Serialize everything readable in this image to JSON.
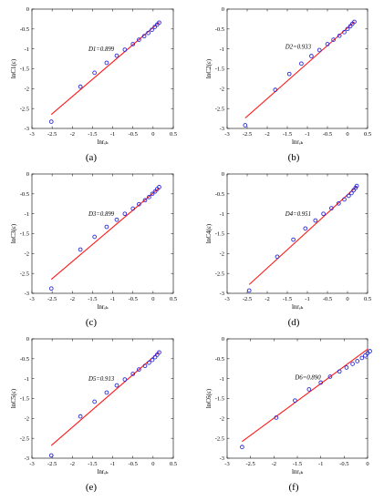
{
  "chart_data": [
    {
      "type": "scatter",
      "caption": "(a)",
      "annotation": "D1=0.899",
      "ylabel": "lnC1(ε)",
      "xlabel": "lnrₑₖ",
      "xlim": [
        -3,
        0.5
      ],
      "ylim": [
        -3,
        0
      ],
      "xticks": [
        "-3",
        "-2.5",
        "-2",
        "-1.5",
        "-1",
        "-0.5",
        "0",
        "0.5"
      ],
      "yticks": [
        "0",
        "-0.5",
        "-1",
        "-1.5",
        "-2",
        "-2.5",
        "-3"
      ],
      "points": [
        [
          -2.52,
          -2.83
        ],
        [
          -1.8,
          -1.95
        ],
        [
          -1.45,
          -1.6
        ],
        [
          -1.15,
          -1.35
        ],
        [
          -0.9,
          -1.17
        ],
        [
          -0.7,
          -1.02
        ],
        [
          -0.5,
          -0.88
        ],
        [
          -0.35,
          -0.77
        ],
        [
          -0.22,
          -0.68
        ],
        [
          -0.12,
          -0.6
        ],
        [
          -0.03,
          -0.52
        ],
        [
          0.04,
          -0.45
        ],
        [
          0.1,
          -0.39
        ],
        [
          0.15,
          -0.34
        ]
      ],
      "fit": [
        [
          -2.52,
          -2.65
        ],
        [
          0.15,
          -0.33
        ]
      ]
    },
    {
      "type": "scatter",
      "caption": "(b)",
      "annotation": "D2=0.933",
      "ylabel": "lnC2(ε)",
      "xlabel": "lnrₑₖ",
      "xlim": [
        -3,
        0.5
      ],
      "ylim": [
        -3,
        0
      ],
      "xticks": [
        "-3",
        "-2.5",
        "-2",
        "-1.5",
        "-1",
        "-0.5",
        "0",
        "0.5"
      ],
      "yticks": [
        "0",
        "-0.5",
        "-1",
        "-1.5",
        "-2",
        "-2.5",
        "-3"
      ],
      "points": [
        [
          -2.55,
          -2.92
        ],
        [
          -1.8,
          -2.03
        ],
        [
          -1.45,
          -1.63
        ],
        [
          -1.15,
          -1.37
        ],
        [
          -0.9,
          -1.18
        ],
        [
          -0.7,
          -1.03
        ],
        [
          -0.5,
          -0.88
        ],
        [
          -0.35,
          -0.77
        ],
        [
          -0.2,
          -0.67
        ],
        [
          -0.08,
          -0.58
        ],
        [
          0,
          -0.5
        ],
        [
          0.07,
          -0.43
        ],
        [
          0.12,
          -0.37
        ],
        [
          0.17,
          -0.32
        ]
      ],
      "fit": [
        [
          -2.55,
          -2.74
        ],
        [
          0.17,
          -0.32
        ]
      ]
    },
    {
      "type": "scatter",
      "caption": "(c)",
      "annotation": "D3=0.899",
      "ylabel": "lnC3(ε)",
      "xlabel": "lnrₑₖ",
      "xlim": [
        -3,
        0.5
      ],
      "ylim": [
        -3,
        0
      ],
      "xticks": [
        "-3",
        "-2.5",
        "-2",
        "-1.5",
        "-1",
        "-0.5",
        "0",
        "0.5"
      ],
      "yticks": [
        "0",
        "-0.5",
        "-1",
        "-1.5",
        "-2",
        "-2.5",
        "-3"
      ],
      "points": [
        [
          -2.52,
          -2.88
        ],
        [
          -1.8,
          -1.9
        ],
        [
          -1.45,
          -1.58
        ],
        [
          -1.15,
          -1.33
        ],
        [
          -0.9,
          -1.15
        ],
        [
          -0.7,
          -1.0
        ],
        [
          -0.5,
          -0.87
        ],
        [
          -0.35,
          -0.76
        ],
        [
          -0.2,
          -0.66
        ],
        [
          -0.1,
          -0.58
        ],
        [
          -0.02,
          -0.5
        ],
        [
          0.05,
          -0.44
        ],
        [
          0.1,
          -0.38
        ],
        [
          0.15,
          -0.33
        ]
      ],
      "fit": [
        [
          -2.52,
          -2.65
        ],
        [
          0.15,
          -0.35
        ]
      ]
    },
    {
      "type": "scatter",
      "caption": "(d)",
      "annotation": "D4=0.951",
      "ylabel": "lnC4(ε)",
      "xlabel": "lnrₑₖ",
      "xlim": [
        -3,
        0.5
      ],
      "ylim": [
        -3,
        0
      ],
      "xticks": [
        "-3",
        "-2.5",
        "-2",
        "-1.5",
        "-1",
        "-0.5",
        "0",
        "0.5"
      ],
      "yticks": [
        "0",
        "-0.5",
        "-1",
        "-1.5",
        "-2",
        "-2.5",
        "-3"
      ],
      "points": [
        [
          -2.45,
          -2.93
        ],
        [
          -1.75,
          -2.08
        ],
        [
          -1.35,
          -1.65
        ],
        [
          -1.05,
          -1.37
        ],
        [
          -0.8,
          -1.17
        ],
        [
          -0.6,
          -1.0
        ],
        [
          -0.4,
          -0.86
        ],
        [
          -0.22,
          -0.74
        ],
        [
          -0.08,
          -0.64
        ],
        [
          0.03,
          -0.55
        ],
        [
          0.1,
          -0.48
        ],
        [
          0.15,
          -0.41
        ],
        [
          0.2,
          -0.35
        ],
        [
          0.23,
          -0.3
        ]
      ],
      "fit": [
        [
          -2.45,
          -2.78
        ],
        [
          0.23,
          -0.31
        ]
      ]
    },
    {
      "type": "scatter",
      "caption": "(e)",
      "annotation": "D5=0.913",
      "ylabel": "lnC5(ε)",
      "xlabel": "lnrₑₖ",
      "xlim": [
        -3,
        0.5
      ],
      "ylim": [
        -3,
        0
      ],
      "xticks": [
        "-3",
        "-2.5",
        "-2",
        "-1.5",
        "-1",
        "-0.5",
        "0",
        "0.5"
      ],
      "yticks": [
        "0",
        "-0.5",
        "-1",
        "-1.5",
        "-2",
        "-2.5",
        "-3"
      ],
      "points": [
        [
          -2.52,
          -2.93
        ],
        [
          -1.8,
          -1.95
        ],
        [
          -1.45,
          -1.58
        ],
        [
          -1.15,
          -1.35
        ],
        [
          -0.9,
          -1.17
        ],
        [
          -0.7,
          -1.02
        ],
        [
          -0.5,
          -0.88
        ],
        [
          -0.35,
          -0.77
        ],
        [
          -0.2,
          -0.68
        ],
        [
          -0.1,
          -0.6
        ],
        [
          -0.02,
          -0.53
        ],
        [
          0.05,
          -0.46
        ],
        [
          0.1,
          -0.4
        ],
        [
          0.15,
          -0.34
        ]
      ],
      "fit": [
        [
          -2.52,
          -2.68
        ],
        [
          0.15,
          -0.33
        ]
      ]
    },
    {
      "type": "scatter",
      "caption": "(f)",
      "annotation": "D6=0.890",
      "ylabel": "lnC6(ε)",
      "xlabel": "lnrₑₖ",
      "xlim": [
        -3,
        0
      ],
      "ylim": [
        -3,
        0
      ],
      "xticks": [
        "-3",
        "-2.5",
        "-2",
        "-1.5",
        "-1",
        "-0.5",
        "0"
      ],
      "yticks": [
        "0",
        "-0.5",
        "-1",
        "-1.5",
        "-2",
        "-2.5",
        "-3"
      ],
      "points": [
        [
          -2.68,
          -2.72
        ],
        [
          -1.95,
          -1.98
        ],
        [
          -1.55,
          -1.55
        ],
        [
          -1.25,
          -1.27
        ],
        [
          -1.0,
          -1.1
        ],
        [
          -0.8,
          -0.95
        ],
        [
          -0.6,
          -0.82
        ],
        [
          -0.45,
          -0.72
        ],
        [
          -0.32,
          -0.63
        ],
        [
          -0.22,
          -0.56
        ],
        [
          -0.12,
          -0.48
        ],
        [
          -0.05,
          -0.42
        ],
        [
          0,
          -0.36
        ],
        [
          0.05,
          -0.31
        ]
      ],
      "fit": [
        [
          -2.68,
          -2.58
        ],
        [
          0,
          -0.26
        ]
      ]
    }
  ],
  "colors": {
    "marker": "#2b2bd8",
    "fit": "#ff1a1a",
    "axes": "#000000"
  }
}
